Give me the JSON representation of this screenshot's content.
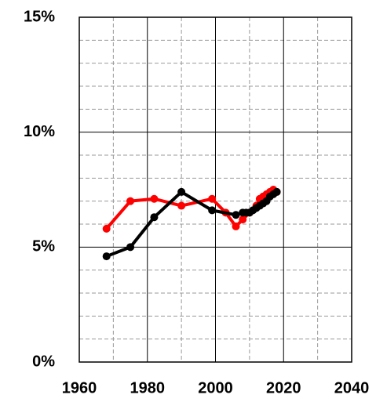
{
  "chart_data": {
    "type": "line",
    "xlim": [
      1960,
      2040
    ],
    "xticks": [
      1960,
      1980,
      2000,
      2020,
      2040
    ],
    "ylim": [
      0,
      15
    ],
    "yticks": [
      {
        "value": 0,
        "label": "0%"
      },
      {
        "value": 5,
        "label": "5%"
      },
      {
        "value": 10,
        "label": "10%"
      },
      {
        "value": 15,
        "label": "15%"
      }
    ],
    "grid": true,
    "series": [
      {
        "color": "#ff0000",
        "x": [
          1968,
          1975,
          1982,
          1990,
          1999,
          2003,
          2006,
          2008,
          2010,
          2012,
          2013,
          2014,
          2015,
          2016,
          2017,
          2018
        ],
        "values": [
          5.8,
          7.0,
          7.1,
          6.8,
          7.1,
          6.5,
          5.9,
          6.2,
          6.5,
          6.8,
          7.1,
          7.2,
          7.3,
          7.4,
          7.5,
          7.4
        ]
      },
      {
        "color": "#000000",
        "x": [
          1968,
          1975,
          1982,
          1990,
          1999,
          2006,
          2008,
          2009,
          2010,
          2011,
          2012,
          2013,
          2014,
          2015,
          2016,
          2017,
          2018
        ],
        "values": [
          4.6,
          5.0,
          6.3,
          7.4,
          6.6,
          6.4,
          6.5,
          6.5,
          6.5,
          6.6,
          6.7,
          6.8,
          6.9,
          7.0,
          7.2,
          7.3,
          7.4
        ]
      }
    ]
  }
}
